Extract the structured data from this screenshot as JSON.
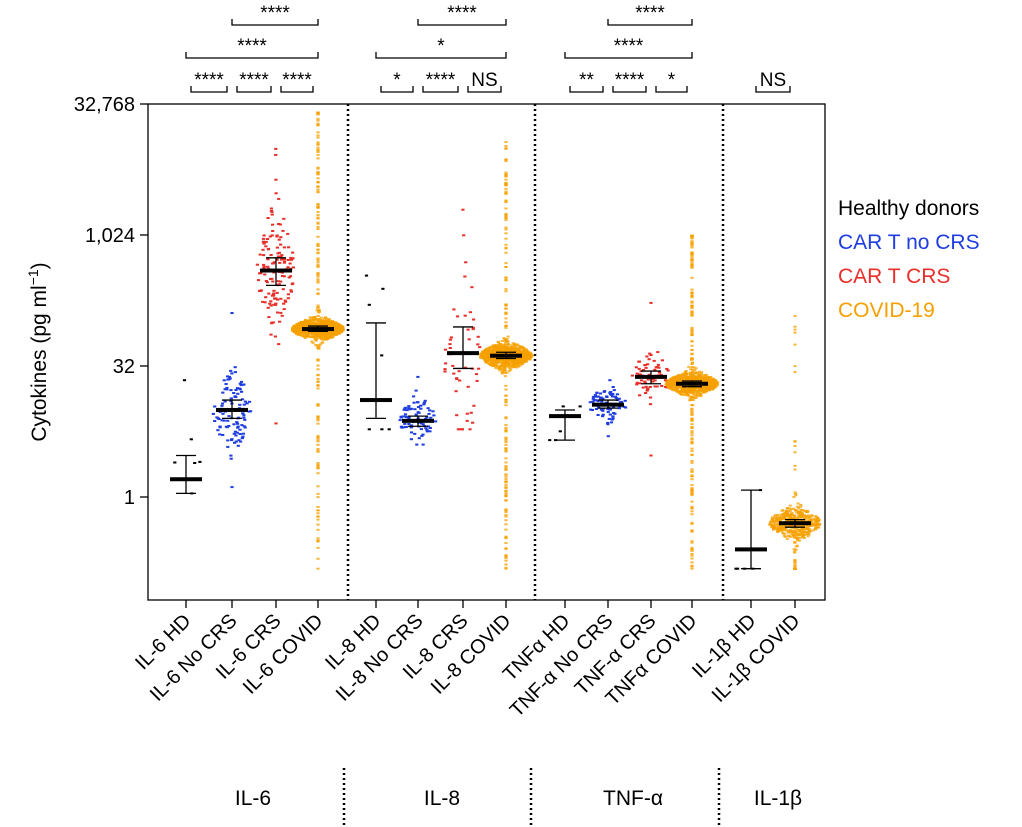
{
  "chart_data": {
    "type": "beeswarm",
    "ylabel": "Cytokines (pg ml",
    "ylabel_sup": "−1",
    "y_scale": "log2",
    "ylim": [
      0.15,
      30000
    ],
    "y_ticks": [
      1,
      32,
      1024,
      32768
    ],
    "y_tick_labels": [
      "1",
      "32",
      "1,024",
      "32,768"
    ],
    "categories": [
      "IL-6 HD",
      "IL-6 No CRS",
      "IL-6 CRS",
      "IL-6 COVID",
      "IL-8 HD",
      "IL-8 No CRS",
      "IL-8 CRS",
      "IL-8 COVID",
      "TNFα HD",
      "TNF-α No CRS",
      "TNF-α CRS",
      "TNFα COVID",
      "IL-1β HD",
      "IL-1β COVID"
    ],
    "groups": [
      {
        "label": "IL-6",
        "categories": [
          0,
          1,
          2,
          3
        ]
      },
      {
        "label": "IL-8",
        "categories": [
          4,
          5,
          6,
          7
        ]
      },
      {
        "label": "TNF-α",
        "categories": [
          8,
          9,
          10,
          11
        ]
      },
      {
        "label": "IL-1β",
        "categories": [
          12,
          13
        ]
      }
    ],
    "series": [
      {
        "name": "Healthy donors",
        "color": "#000000"
      },
      {
        "name": "CAR T no CRS",
        "color": "#1f3de0"
      },
      {
        "name": "CAR T CRS",
        "color": "#e8302a"
      },
      {
        "name": "COVID-19",
        "color": "#f5a000"
      }
    ],
    "boxes": [
      {
        "category": "IL-6 HD",
        "series": "Healthy donors",
        "median": 1.6,
        "q1": 1.1,
        "q3": 3.0,
        "n": 6,
        "min": 1.1,
        "max": 22
      },
      {
        "category": "IL-6 No CRS",
        "series": "CAR T no CRS",
        "median": 10,
        "q1": 8,
        "q3": 13,
        "n": 110,
        "min": 1.3,
        "max": 130
      },
      {
        "category": "IL-6 CRS",
        "series": "CAR T CRS",
        "median": 400,
        "q1": 270,
        "q3": 560,
        "n": 150,
        "min": 7,
        "max": 10000
      },
      {
        "category": "IL-6 COVID",
        "series": "COVID-19",
        "median": 85,
        "q1": 80,
        "q3": 92,
        "n": 1000,
        "min": 0.15,
        "max": 26000
      },
      {
        "category": "IL-8 HD",
        "series": "Healthy donors",
        "median": 13,
        "q1": 8,
        "q3": 100,
        "n": 7,
        "min": 6,
        "max": 350
      },
      {
        "category": "IL-8 No CRS",
        "series": "CAR T no CRS",
        "median": 7.5,
        "q1": 6.5,
        "q3": 8.5,
        "n": 80,
        "min": 4,
        "max": 24
      },
      {
        "category": "IL-8 CRS",
        "series": "CAR T CRS",
        "median": 45,
        "q1": 30,
        "q3": 90,
        "n": 50,
        "min": 6,
        "max": 2000
      },
      {
        "category": "IL-8 COVID",
        "series": "COVID-19",
        "median": 42,
        "q1": 39,
        "q3": 46,
        "n": 1000,
        "min": 0.15,
        "max": 12000
      },
      {
        "category": "TNFα HD",
        "series": "Healthy donors",
        "median": 8.5,
        "q1": 4.5,
        "q3": 10,
        "n": 5,
        "min": 4.5,
        "max": 11
      },
      {
        "category": "TNF-α No CRS",
        "series": "CAR T no CRS",
        "median": 11.5,
        "q1": 10.5,
        "q3": 13,
        "n": 80,
        "min": 5,
        "max": 22
      },
      {
        "category": "TNF-α CRS",
        "series": "CAR T CRS",
        "median": 24,
        "q1": 20,
        "q3": 28,
        "n": 70,
        "min": 3,
        "max": 170
      },
      {
        "category": "TNFα COVID",
        "series": "COVID-19",
        "median": 20,
        "q1": 18.5,
        "q3": 21.5,
        "n": 1000,
        "min": 0.15,
        "max": 1000
      },
      {
        "category": "IL-1β HD",
        "series": "Healthy donors",
        "median": 0.25,
        "q1": 0.15,
        "q3": 1.2,
        "n": 5,
        "min": 0.15,
        "max": 1.2
      },
      {
        "category": "IL-1β COVID",
        "series": "COVID-19",
        "median": 0.5,
        "q1": 0.45,
        "q3": 0.55,
        "n": 500,
        "min": 0.15,
        "max": 120
      }
    ],
    "significance": [
      {
        "from": 0,
        "to": 1,
        "label": "****",
        "level": 0
      },
      {
        "from": 1,
        "to": 2,
        "label": "****",
        "level": 0
      },
      {
        "from": 2,
        "to": 3,
        "label": "****",
        "level": 0
      },
      {
        "from": 0,
        "to": 3,
        "label": "****",
        "level": 1
      },
      {
        "from": 1,
        "to": 3,
        "label": "****",
        "level": 2
      },
      {
        "from": 4,
        "to": 5,
        "label": "*",
        "level": 0
      },
      {
        "from": 5,
        "to": 6,
        "label": "****",
        "level": 0
      },
      {
        "from": 6,
        "to": 7,
        "label": "NS",
        "level": 0
      },
      {
        "from": 4,
        "to": 7,
        "label": "*",
        "level": 1
      },
      {
        "from": 5,
        "to": 7,
        "label": "****",
        "level": 2
      },
      {
        "from": 8,
        "to": 9,
        "label": "**",
        "level": 0
      },
      {
        "from": 9,
        "to": 10,
        "label": "****",
        "level": 0
      },
      {
        "from": 10,
        "to": 11,
        "label": "*",
        "level": 0
      },
      {
        "from": 8,
        "to": 11,
        "label": "****",
        "level": 1
      },
      {
        "from": 9,
        "to": 11,
        "label": "****",
        "level": 2
      },
      {
        "from": 12,
        "to": 13,
        "label": "NS",
        "level": 0
      }
    ],
    "legend_position": "right"
  }
}
